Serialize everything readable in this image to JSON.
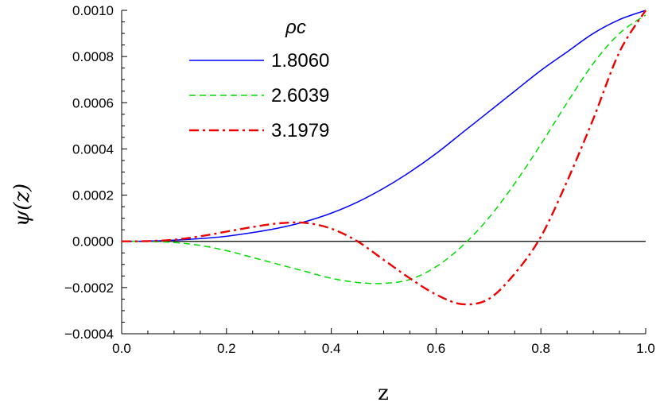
{
  "chart_data": {
    "type": "line",
    "title": "",
    "xlabel": "z",
    "ylabel": "ψ(z)",
    "xlim": [
      0.0,
      1.0
    ],
    "ylim": [
      -0.0004,
      0.001
    ],
    "x_ticks": [
      "0.0",
      "0.2",
      "0.4",
      "0.6",
      "0.8",
      "1.0"
    ],
    "y_ticks": [
      "−0.0004",
      "−0.0002",
      "0.0000",
      "0.0002",
      "0.0004",
      "0.0006",
      "0.0008",
      "0.0010"
    ],
    "legend_title": "ρc",
    "legend_placement": "top-left",
    "grid": false,
    "series": [
      {
        "name": "1.8060",
        "color": "#0000ff",
        "style": "solid",
        "x": [
          0.0,
          0.05,
          0.1,
          0.15,
          0.2,
          0.25,
          0.3,
          0.35,
          0.4,
          0.45,
          0.5,
          0.55,
          0.6,
          0.65,
          0.7,
          0.75,
          0.8,
          0.85,
          0.9,
          0.95,
          1.0
        ],
        "y": [
          0.0,
          1e-06,
          5e-06,
          1.2e-05,
          2.2e-05,
          3.8e-05,
          5.8e-05,
          8.5e-05,
          0.000122,
          0.00017,
          0.00023,
          0.0003,
          0.00038,
          0.00047,
          0.00056,
          0.00065,
          0.00074,
          0.00082,
          0.0009,
          0.00096,
          0.001
        ]
      },
      {
        "name": "2.6039",
        "color": "#00dd00",
        "style": "dashed",
        "x": [
          0.0,
          0.05,
          0.1,
          0.15,
          0.2,
          0.25,
          0.3,
          0.35,
          0.4,
          0.45,
          0.5,
          0.55,
          0.6,
          0.65,
          0.7,
          0.75,
          0.8,
          0.85,
          0.9,
          0.95,
          1.0
        ],
        "y": [
          0.0,
          -1e-06,
          -5e-06,
          -1.8e-05,
          -4e-05,
          -7e-05,
          -0.0001,
          -0.00013,
          -0.00016,
          -0.000178,
          -0.000182,
          -0.000165,
          -0.00011,
          -2e-05,
          0.0001,
          0.00025,
          0.00042,
          0.0006,
          0.00077,
          0.0009,
          0.00098
        ]
      },
      {
        "name": "3.1979",
        "color": "#ee0000",
        "style": "dashdot",
        "x": [
          0.0,
          0.05,
          0.1,
          0.15,
          0.2,
          0.25,
          0.3,
          0.35,
          0.4,
          0.45,
          0.5,
          0.55,
          0.6,
          0.65,
          0.7,
          0.75,
          0.8,
          0.85,
          0.9,
          0.95,
          1.0
        ],
        "y": [
          0.0,
          1e-06,
          7e-06,
          2.2e-05,
          4.2e-05,
          6.2e-05,
          7.8e-05,
          8e-05,
          5.5e-05,
          0.0,
          -8e-05,
          -0.00016,
          -0.00023,
          -0.000272,
          -0.00025,
          -0.00014,
          2e-05,
          0.00026,
          0.00053,
          0.00082,
          0.001
        ]
      }
    ]
  }
}
